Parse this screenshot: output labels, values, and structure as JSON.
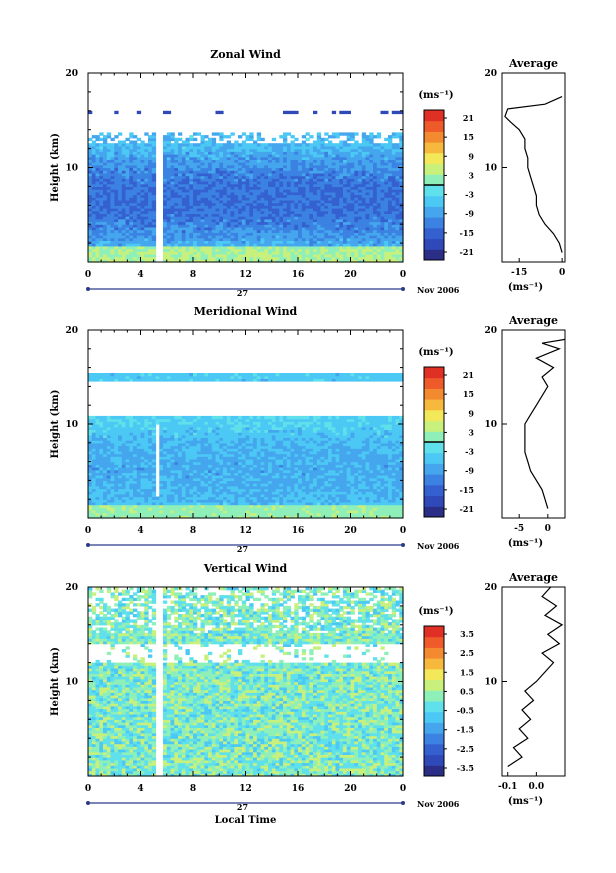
{
  "figure": {
    "x_axis_label": "Local Time",
    "y_axis_label": "Height (km)",
    "unit_label": "(ms⁻¹)",
    "unit_label_avg": "(ms⁻¹)",
    "date_day": "27",
    "date_label": "Nov 2006",
    "average_title": "Average"
  },
  "colors": {
    "scale": [
      "#2b2e86",
      "#2f49b8",
      "#3561d0",
      "#3b82e2",
      "#45a6ee",
      "#4cc8f4",
      "#5fe0ea",
      "#8ef0b8",
      "#c8f07c",
      "#f2e85a",
      "#f7b83e",
      "#f48a30",
      "#ee5a2a",
      "#e03026"
    ]
  },
  "chart_data": [
    {
      "type": "heatmap",
      "title": "Zonal Wind",
      "xlim": [
        0,
        24
      ],
      "xticks": [
        "0",
        "4",
        "8",
        "12",
        "16",
        "20",
        "0"
      ],
      "ylim": [
        0,
        20
      ],
      "yticks": [
        "20",
        "10"
      ],
      "colorbar": {
        "ticks": [
          "21",
          "15",
          "9",
          "3",
          "-3",
          "-9",
          "-15",
          "-21"
        ],
        "range": [
          -24,
          24
        ],
        "contour_at": 0
      },
      "average_profile": {
        "xlim": [
          -21,
          1
        ],
        "xticks": [
          "-15",
          "0"
        ],
        "points": [
          [
            0,
            1
          ],
          [
            -1,
            2
          ],
          [
            -3,
            3
          ],
          [
            -6,
            4
          ],
          [
            -8,
            5
          ],
          [
            -9,
            6
          ],
          [
            -9,
            7
          ],
          [
            -10,
            8
          ],
          [
            -11,
            9
          ],
          [
            -12,
            10
          ],
          [
            -12,
            11
          ],
          [
            -13,
            12
          ],
          [
            -13,
            13
          ],
          [
            -15,
            14
          ],
          [
            -18,
            14.8
          ],
          [
            -20,
            15.4
          ],
          [
            -19,
            16.2
          ],
          [
            -6,
            16.7
          ],
          [
            0,
            17.5
          ]
        ]
      }
    },
    {
      "type": "heatmap",
      "title": "Meridional Wind",
      "xlim": [
        0,
        24
      ],
      "xticks": [
        "0",
        "4",
        "8",
        "12",
        "16",
        "20",
        "0"
      ],
      "ylim": [
        0,
        20
      ],
      "yticks": [
        "20",
        "10"
      ],
      "colorbar": {
        "ticks": [
          "21",
          "15",
          "9",
          "3",
          "-3",
          "-9",
          "-15",
          "-21"
        ],
        "range": [
          -24,
          24
        ],
        "contour_at": 0
      },
      "average_profile": {
        "xlim": [
          -8,
          3
        ],
        "xticks": [
          "-5",
          "0"
        ],
        "points": [
          [
            0,
            1
          ],
          [
            -0.5,
            2
          ],
          [
            -1,
            3
          ],
          [
            -2,
            4
          ],
          [
            -3,
            5
          ],
          [
            -3.5,
            6
          ],
          [
            -4,
            7
          ],
          [
            -4,
            8
          ],
          [
            -4,
            9
          ],
          [
            -4,
            10
          ],
          [
            -3,
            11
          ],
          [
            -2,
            12
          ],
          [
            -1,
            13
          ],
          [
            0,
            14
          ],
          [
            -1,
            15
          ],
          [
            1,
            16
          ],
          [
            -2,
            17
          ],
          [
            2,
            18
          ],
          [
            -1,
            18.6
          ],
          [
            3,
            19
          ]
        ]
      }
    },
    {
      "type": "heatmap",
      "title": "Vertical Wind",
      "xlim": [
        0,
        24
      ],
      "xticks": [
        "0",
        "4",
        "8",
        "12",
        "16",
        "20",
        "0"
      ],
      "ylim": [
        0,
        20
      ],
      "yticks": [
        "20",
        "10"
      ],
      "colorbar": {
        "ticks": [
          "3.5",
          "2.5",
          "1.5",
          "0.5",
          "-0.5",
          "-1.5",
          "-2.5",
          "-3.5"
        ],
        "range": [
          -4,
          4
        ]
      },
      "average_profile": {
        "xlim": [
          -0.12,
          0.1
        ],
        "xticks": [
          "-0.1",
          "0.0"
        ],
        "points": [
          [
            -0.1,
            1
          ],
          [
            -0.05,
            2
          ],
          [
            -0.08,
            3
          ],
          [
            -0.03,
            4
          ],
          [
            -0.06,
            5
          ],
          [
            -0.02,
            6
          ],
          [
            -0.05,
            7
          ],
          [
            -0.01,
            8
          ],
          [
            -0.04,
            9
          ],
          [
            0.0,
            10
          ],
          [
            0.03,
            11
          ],
          [
            0.06,
            12
          ],
          [
            0.02,
            13
          ],
          [
            0.08,
            14
          ],
          [
            0.04,
            15
          ],
          [
            0.09,
            16
          ],
          [
            0.03,
            17
          ],
          [
            0.07,
            18
          ],
          [
            0.02,
            19
          ],
          [
            0.05,
            20
          ]
        ]
      }
    }
  ]
}
